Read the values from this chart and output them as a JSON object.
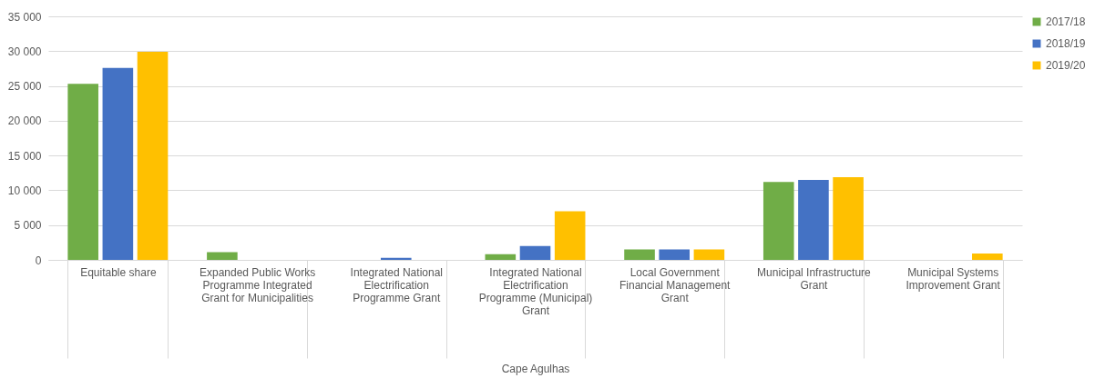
{
  "chart_data": {
    "type": "bar",
    "categories": [
      "Equitable share",
      "Expanded Public Works Programme Integrated Grant for Municipalities",
      "Integrated National Electrification Programme Grant",
      "Integrated National Electrification Programme (Municipal) Grant",
      "Local Government Financial Management Grant",
      "Municipal Infrastructure Grant",
      "Municipal Systems Improvement Grant"
    ],
    "series": [
      {
        "name": "2017/18",
        "color": "#70ad47",
        "values": [
          25300,
          1100,
          null,
          800,
          1500,
          11200,
          null
        ]
      },
      {
        "name": "2018/19",
        "color": "#4472c4",
        "values": [
          27600,
          null,
          300,
          2000,
          1500,
          11500,
          null
        ]
      },
      {
        "name": "2019/20",
        "color": "#ffc000",
        "values": [
          29900,
          null,
          null,
          7000,
          1500,
          11900,
          900
        ]
      }
    ],
    "xlabel": "Cape Agulhas",
    "ylim": [
      0,
      35000
    ],
    "yticks": [
      {
        "value": 0,
        "label": "0"
      },
      {
        "value": 5000,
        "label": "5 000"
      },
      {
        "value": 10000,
        "label": "10 000"
      },
      {
        "value": 15000,
        "label": "15 000"
      },
      {
        "value": 20000,
        "label": "20 000"
      },
      {
        "value": 25000,
        "label": "25 000"
      },
      {
        "value": 30000,
        "label": "30 000"
      },
      {
        "value": 35000,
        "label": "35 000"
      }
    ],
    "grid": "y",
    "legend": "right"
  }
}
